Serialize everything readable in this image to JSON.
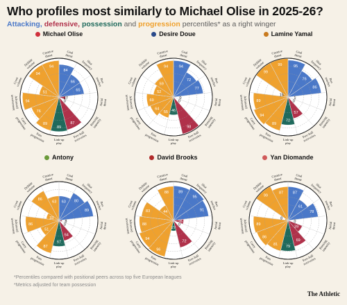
{
  "header": {
    "title": "Who profiles most similarly to Michael Olise in 2025-26?",
    "subtitle_parts": {
      "attacking": "Attacking,",
      "defensive": "defensive,",
      "possession": "possession",
      "and": "and",
      "progression": "progression",
      "rest": "percentiles* as a right winger"
    }
  },
  "colors": {
    "attacking": "#4a78c8",
    "defensive": "#b0314a",
    "possession": "#1f6a5c",
    "progression": "#efa12e",
    "background": "#f6f1e7"
  },
  "chart_data": [
    {
      "type": "radar",
      "player": "Michael Olise",
      "crest_color": "#d0303c",
      "categories": [
        "Goal threat",
        "Shot frequency",
        "Box touches",
        "Aerial threat",
        "Pressing intensity",
        "Free-ball recoveries",
        "Link-up play",
        "Pass progression",
        "Carry progression",
        "Advanced involvement",
        "Cross volume",
        "Dribble volume",
        "Creative threat"
      ],
      "category_groups": [
        "attacking",
        "attacking",
        "attacking",
        "defensive",
        "defensive",
        "defensive",
        "possession",
        "progression",
        "progression",
        "progression",
        "progression",
        "progression",
        "progression"
      ],
      "values": [
        84,
        66,
        65,
        17,
        0,
        87,
        89,
        89,
        76,
        94,
        51,
        94,
        94
      ]
    },
    {
      "type": "radar",
      "player": "Desire Doue",
      "crest_color": "#2a4a8a",
      "categories": [
        "Goal threat",
        "Shot frequency",
        "Box touches",
        "Aerial threat",
        "Pressing intensity",
        "Free-ball recoveries",
        "Link-up play",
        "Pass progression",
        "Carry progression",
        "Advanced involvement",
        "Cross volume",
        "Dribble volume",
        "Creative threat"
      ],
      "category_groups": [
        "attacking",
        "attacking",
        "attacking",
        "defensive",
        "defensive",
        "defensive",
        "possession",
        "progression",
        "progression",
        "progression",
        "progression",
        "progression",
        "progression"
      ],
      "values": [
        94,
        72,
        77,
        0,
        0,
        98,
        46,
        55,
        64,
        69,
        52,
        59,
        94
      ]
    },
    {
      "type": "radar",
      "player": "Lamine Yamal",
      "crest_color": "#c87a1e",
      "categories": [
        "Goal threat",
        "Shot frequency",
        "Box touches",
        "Aerial threat",
        "Pressing intensity",
        "Free-ball recoveries",
        "Link-up play",
        "Pass progression",
        "Carry progression",
        "Advanced involvement",
        "Cross volume",
        "Dribble volume",
        "Creative threat"
      ],
      "category_groups": [
        "attacking",
        "attacking",
        "attacking",
        "defensive",
        "defensive",
        "defensive",
        "possession",
        "progression",
        "progression",
        "progression",
        "progression",
        "progression",
        "progression"
      ],
      "values": [
        95,
        76,
        86,
        1,
        0,
        57,
        72,
        89,
        94,
        89,
        15,
        99,
        99
      ]
    },
    {
      "type": "radar",
      "player": "Antony",
      "crest_color": "#6a9a3a",
      "categories": [
        "Goal threat",
        "Shot frequency",
        "Box touches",
        "Aerial threat",
        "Pressing intensity",
        "Free-ball recoveries",
        "Link-up play",
        "Pass progression",
        "Carry progression",
        "Advanced involvement",
        "Cross volume",
        "Dribble volume",
        "Creative threat"
      ],
      "category_groups": [
        "attacking",
        "attacking",
        "attacking",
        "defensive",
        "defensive",
        "defensive",
        "possession",
        "progression",
        "progression",
        "progression",
        "progression",
        "progression",
        "progression"
      ],
      "values": [
        63,
        80,
        89,
        8,
        0,
        54,
        67,
        87,
        51,
        86,
        33,
        86,
        63
      ]
    },
    {
      "type": "radar",
      "player": "David Brooks",
      "crest_color": "#b02a2a",
      "categories": [
        "Goal threat",
        "Shot frequency",
        "Box touches",
        "Aerial threat",
        "Pressing intensity",
        "Free-ball recoveries",
        "Link-up play",
        "Pass progression",
        "Carry progression",
        "Advanced involvement",
        "Cross volume",
        "Dribble volume",
        "Creative threat"
      ],
      "category_groups": [
        "attacking",
        "attacking",
        "attacking",
        "defensive",
        "defensive",
        "defensive",
        "possession",
        "progression",
        "progression",
        "progression",
        "progression",
        "progression",
        "progression"
      ],
      "values": [
        89,
        95,
        91,
        26,
        0,
        72,
        27,
        96,
        94,
        88,
        83,
        44,
        88
      ]
    },
    {
      "type": "radar",
      "player": "Yan Diomande",
      "crest_color": "#d05a5a",
      "categories": [
        "Goal threat",
        "Shot frequency",
        "Box touches",
        "Aerial threat",
        "Pressing intensity",
        "Free-ball recoveries",
        "Link-up play",
        "Pass progression",
        "Carry progression",
        "Advanced involvement",
        "Cross volume",
        "Dribble volume",
        "Creative threat"
      ],
      "category_groups": [
        "attacking",
        "attacking",
        "attacking",
        "defensive",
        "defensive",
        "defensive",
        "possession",
        "progression",
        "progression",
        "progression",
        "progression",
        "progression",
        "progression"
      ],
      "values": [
        87,
        61,
        78,
        0,
        39,
        69,
        79,
        81,
        86,
        89,
        8,
        99,
        87
      ]
    }
  ],
  "footer": {
    "note1": "*Percentiles compared with positional peers across top five European leagues",
    "note2": "*Metrics adjusted for team possession",
    "brand": "The Athletic"
  }
}
